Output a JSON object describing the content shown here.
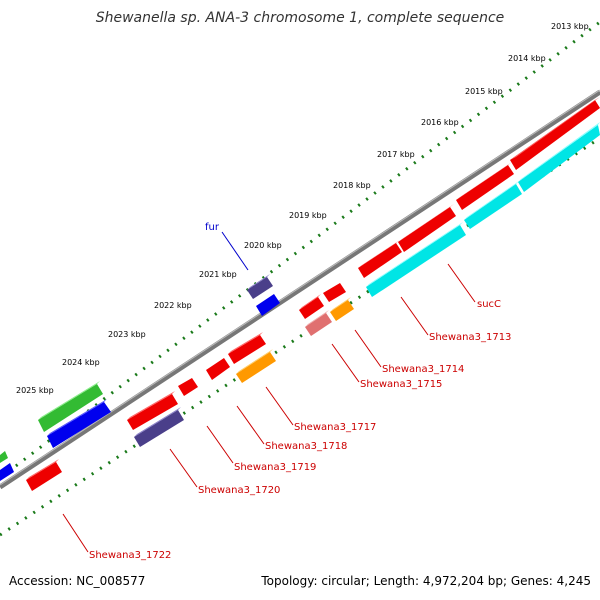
{
  "title": "Shewanella sp. ANA-3 chromosome 1, complete sequence",
  "footer": {
    "accession": "Accession: NC_008577",
    "summary": "Topology: circular; Length: 4,972,204 bp; Genes: 4,245"
  },
  "kbp_labels": [
    "2013 kbp",
    "2014 kbp",
    "2015 kbp",
    "2016 kbp",
    "2017 kbp",
    "2018 kbp",
    "2019 kbp",
    "2020 kbp",
    "2021 kbp",
    "2022 kbp",
    "2023 kbp",
    "2024 kbp",
    "2025 kbp"
  ],
  "gene_labels": {
    "fur": "fur",
    "sucC": "sucC",
    "g1713": "Shewana3_1713",
    "g1714": "Shewana3_1714",
    "g1715": "Shewana3_1715",
    "g1717": "Shewana3_1717",
    "g1718": "Shewana3_1718",
    "g1719": "Shewana3_1719",
    "g1720": "Shewana3_1720",
    "g1722": "Shewana3_1722"
  },
  "colors": {
    "backbone": "#777777",
    "tick_ring": "#1a7a1a",
    "gene_red": "#ee0000",
    "gene_cyan": "#00e5e5",
    "gene_navy": "#4a3f8a",
    "gene_blue": "#0000ee",
    "gene_green": "#33bb33",
    "gene_orange": "#ff9900",
    "gene_pink": "#e07070",
    "label_red": "#cc0000",
    "label_blue": "#0000cc"
  }
}
